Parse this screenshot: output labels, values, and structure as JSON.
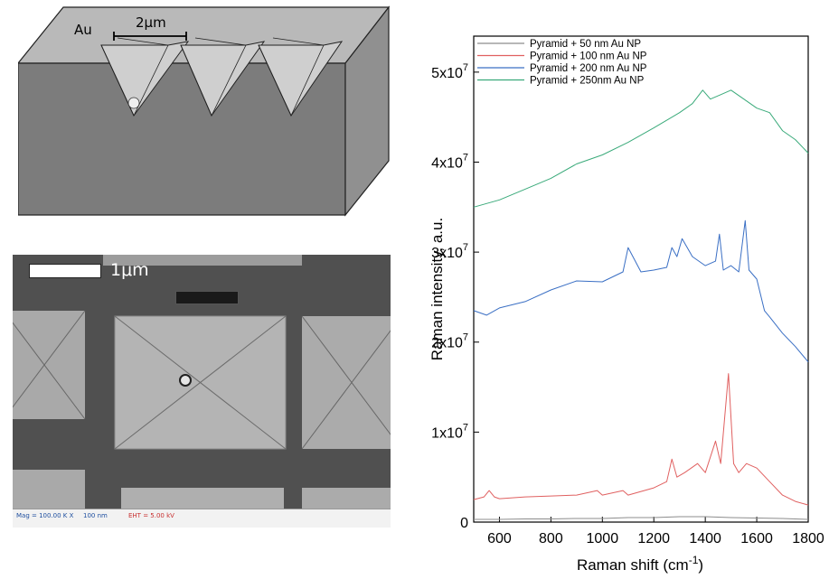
{
  "schematic": {
    "material_label": "Au",
    "scale_label": "2μm"
  },
  "sem": {
    "scale_label": "1μm",
    "info_left": "Mag = 100.00 K X",
    "info_scale": "100 nm",
    "info_eht": "EHT = 5.00 kV"
  },
  "chart_data": {
    "type": "line",
    "xlabel": "Raman shift (cm-1)",
    "ylabel": "Raman intensity, a.u.",
    "xlim": [
      500,
      1800
    ],
    "ylim": [
      0,
      54000000
    ],
    "x_ticks": [
      600,
      800,
      1000,
      1200,
      1400,
      1600,
      1800
    ],
    "x_tick_labels": [
      "600",
      "800",
      "1000",
      "1200",
      "1400",
      "1600",
      "1800"
    ],
    "y_ticks": [
      0,
      10000000,
      20000000,
      30000000,
      40000000,
      50000000
    ],
    "y_tick_labels": [
      "0",
      "1x10",
      "2x10",
      "3x10",
      "4x10",
      "5x10"
    ],
    "y_tick_exponent": "7",
    "legend_position": "top-left",
    "colors": {
      "Pyramid + 50 nm Au NP": "#8c8c8c",
      "Pyramid + 100 nm Au NP": "#e06060",
      "Pyramid + 200 nm Au NP": "#3a6fc4",
      "Pyramid + 250nm Au NP": "#3aaa7a"
    },
    "series": [
      {
        "name": "Pyramid + 50 nm Au NP",
        "x": [
          500,
          600,
          700,
          800,
          900,
          1000,
          1100,
          1200,
          1300,
          1400,
          1500,
          1600,
          1700,
          1800
        ],
        "values": [
          300000,
          300000,
          350000,
          350000,
          400000,
          400000,
          500000,
          500000,
          600000,
          600000,
          500000,
          450000,
          400000,
          300000
        ]
      },
      {
        "name": "Pyramid + 100 nm Au NP",
        "x": [
          500,
          540,
          560,
          580,
          600,
          700,
          800,
          900,
          980,
          1000,
          1080,
          1100,
          1200,
          1250,
          1270,
          1290,
          1320,
          1370,
          1400,
          1440,
          1460,
          1490,
          1510,
          1530,
          1560,
          1600,
          1650,
          1700,
          1750,
          1800
        ],
        "values": [
          2500000,
          2800000,
          3500000,
          2800000,
          2600000,
          2800000,
          2900000,
          3000000,
          3500000,
          3000000,
          3500000,
          3000000,
          3800000,
          4500000,
          7000000,
          5000000,
          5500000,
          6500000,
          5500000,
          9000000,
          6500000,
          16500000,
          6500000,
          5500000,
          6500000,
          6000000,
          4500000,
          3000000,
          2300000,
          1900000
        ]
      },
      {
        "name": "Pyramid + 200 nm Au NP",
        "x": [
          500,
          550,
          600,
          700,
          800,
          900,
          1000,
          1080,
          1100,
          1150,
          1200,
          1250,
          1270,
          1290,
          1310,
          1350,
          1400,
          1440,
          1455,
          1470,
          1500,
          1530,
          1555,
          1570,
          1600,
          1630,
          1650,
          1700,
          1750,
          1800
        ],
        "values": [
          23500000,
          23000000,
          23800000,
          24500000,
          25800000,
          26800000,
          26700000,
          27800000,
          30500000,
          27800000,
          28000000,
          28300000,
          30500000,
          29500000,
          31500000,
          29500000,
          28500000,
          29000000,
          32000000,
          28000000,
          28500000,
          27800000,
          33500000,
          28000000,
          27000000,
          23500000,
          22800000,
          21000000,
          19500000,
          17800000
        ]
      },
      {
        "name": "Pyramid + 250nm Au NP",
        "x": [
          500,
          600,
          700,
          800,
          900,
          1000,
          1100,
          1200,
          1300,
          1350,
          1390,
          1420,
          1460,
          1500,
          1550,
          1600,
          1650,
          1700,
          1750,
          1800
        ],
        "values": [
          35000000,
          35800000,
          37000000,
          38200000,
          39800000,
          40800000,
          42200000,
          43800000,
          45500000,
          46500000,
          48000000,
          47000000,
          47500000,
          48000000,
          47000000,
          46000000,
          45500000,
          43500000,
          42500000,
          41000000
        ]
      }
    ]
  }
}
